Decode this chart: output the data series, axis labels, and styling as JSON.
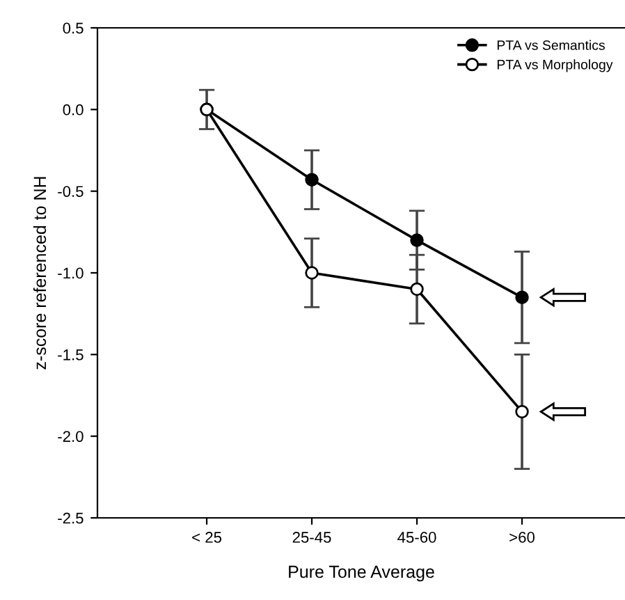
{
  "chart_data": {
    "type": "line",
    "xlabel": "Pure Tone Average",
    "ylabel": "z-score referenced to NH",
    "categories": [
      "< 25",
      "25-45",
      "45-60",
      ">60"
    ],
    "series": [
      {
        "name": "PTA vs Semantics",
        "color": "#000000",
        "marker": "circle",
        "values": [
          0.0,
          -0.43,
          -0.8,
          -1.15
        ],
        "errors": [
          0.12,
          0.18,
          0.18,
          0.28
        ]
      },
      {
        "name": "PTA vs Morphology",
        "color": "#000000",
        "marker": "circle",
        "values": [
          0.0,
          -1.0,
          -1.1,
          -1.85
        ],
        "errors": [
          null,
          0.21,
          0.21,
          0.35
        ]
      }
    ],
    "ylim": [
      -2.5,
      0.5
    ],
    "yticks": [
      0.5,
      {
        "value": 0,
        "label": "0.0"
      },
      -0.5,
      {
        "value": -1,
        "label": "-1.0"
      },
      -1.5,
      {
        "value": -2,
        "label": "-2.0"
      },
      -2.5
    ],
    "legend": "top right"
  }
}
